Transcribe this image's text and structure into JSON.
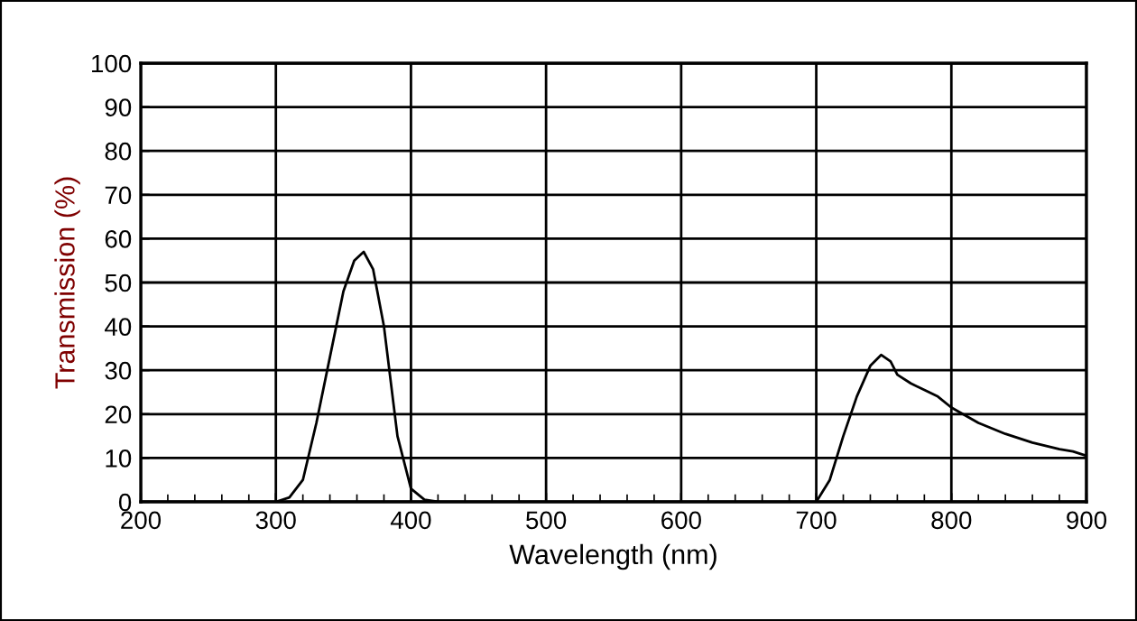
{
  "chart_data": {
    "type": "line",
    "xlabel": "Wavelength (nm)",
    "ylabel": "Transmission (%)",
    "xlim": [
      200,
      900
    ],
    "xticks": [
      200,
      300,
      400,
      500,
      600,
      700,
      800,
      900
    ],
    "ylim": [
      0,
      100
    ],
    "yticks": [
      0,
      10,
      20,
      30,
      40,
      50,
      60,
      70,
      80,
      90,
      100
    ],
    "grid": true,
    "legend": false,
    "marker": "none",
    "line_style": "solid",
    "series": [
      {
        "color": "#000000",
        "x": [
          300,
          310,
          320,
          330,
          340,
          350,
          358,
          365,
          372,
          380,
          390,
          400,
          410,
          420
        ],
        "values": [
          0,
          1,
          5,
          18,
          33,
          48,
          55,
          57,
          53,
          40,
          15,
          3,
          0.5,
          0
        ]
      },
      {
        "color": "#000000",
        "x": [
          700,
          710,
          720,
          730,
          740,
          748,
          755,
          760,
          770,
          780,
          790,
          800,
          820,
          840,
          860,
          880,
          890,
          900
        ],
        "values": [
          0,
          5,
          15,
          24,
          31,
          33.5,
          32,
          29,
          27,
          25.5,
          24,
          21.5,
          18,
          15.5,
          13.5,
          12,
          11.5,
          10.5
        ]
      }
    ]
  }
}
